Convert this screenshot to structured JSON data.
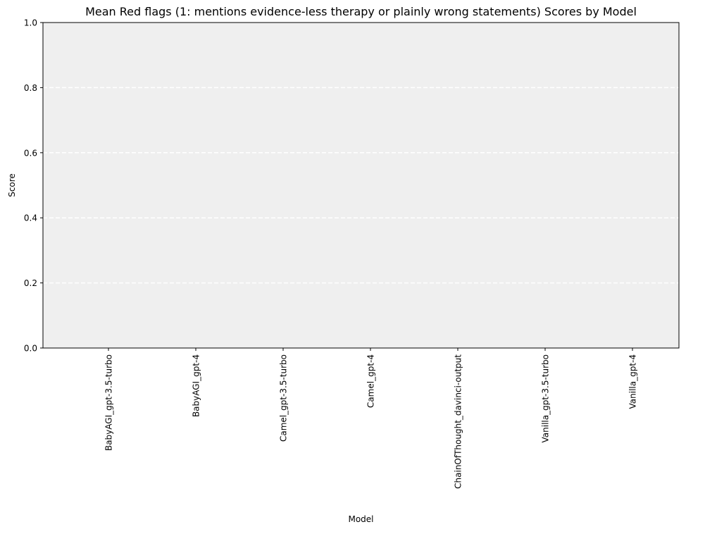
{
  "chart_data": {
    "type": "bar",
    "title": "Mean Red flags (1: mentions evidence-less therapy or plainly wrong statements) Scores by Model",
    "xlabel": "Model",
    "ylabel": "Score",
    "ylim": [
      0,
      1
    ],
    "yticks": [
      "0.0",
      "0.2",
      "0.4",
      "0.6",
      "0.8",
      "1.0"
    ],
    "grid": "y-axis dashed",
    "categories": [
      "BabyAGI_gpt-3.5-turbo",
      "BabyAGI_gpt-4",
      "Camel_gpt-3.5-turbo",
      "Camel_gpt-4",
      "ChainOfThought_davinci-output",
      "Vanilla_gpt-3.5-turbo",
      "Vanilla_gpt-4"
    ],
    "values": [
      0,
      0,
      0,
      0,
      0,
      0,
      0
    ]
  },
  "colors": {
    "plot_background": "#efefef",
    "grid": "#ffffff",
    "bar": "#1f77b4",
    "axis": "#000000"
  }
}
